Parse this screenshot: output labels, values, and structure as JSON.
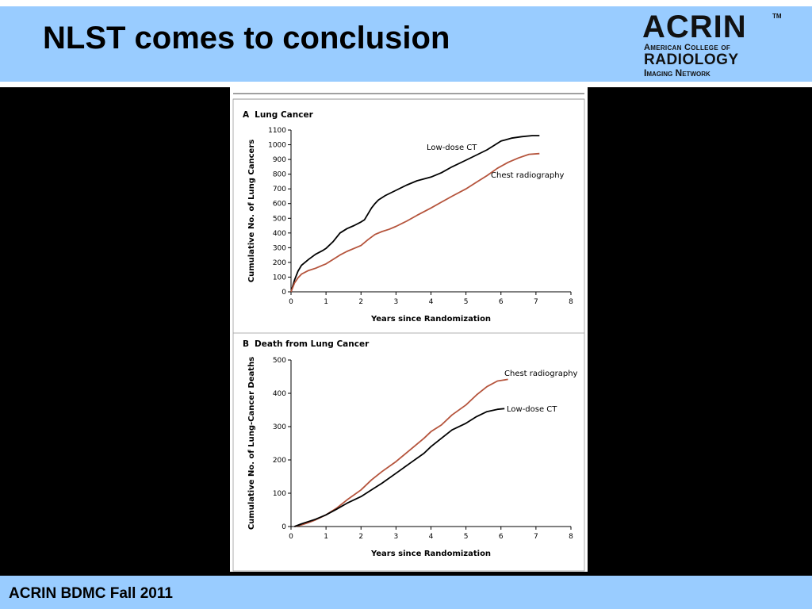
{
  "slide": {
    "title": "NLST comes to conclusion",
    "footer": "ACRIN BDMC Fall 2011"
  },
  "logo": {
    "name": "ACRIN",
    "trademark": "TM",
    "line1": "American College of",
    "line2": "RADIOLOGY",
    "line3": "Imaging Network"
  },
  "colors": {
    "header_band": "#99ccff",
    "low_dose_ct": "#000000",
    "chest_radiography": "#b5543c"
  },
  "chart_data": [
    {
      "type": "line",
      "panel_letter": "A",
      "title": "Lung Cancer",
      "xlabel": "Years since Randomization",
      "ylabel": "Cumulative No. of Lung Cancers",
      "xlim": [
        0,
        8
      ],
      "ylim": [
        0,
        1100
      ],
      "xticks": [
        0,
        1,
        2,
        3,
        4,
        5,
        6,
        7,
        8
      ],
      "yticks": [
        0,
        100,
        200,
        300,
        400,
        500,
        600,
        700,
        800,
        900,
        1000,
        1100
      ],
      "series": [
        {
          "name": "Low-dose CT",
          "color": "#000000",
          "x": [
            0,
            0.1,
            0.2,
            0.3,
            0.5,
            0.7,
            0.9,
            1.0,
            1.2,
            1.4,
            1.6,
            1.8,
            2.0,
            2.1,
            2.2,
            2.3,
            2.4,
            2.5,
            2.7,
            3.0,
            3.3,
            3.6,
            4.0,
            4.3,
            4.6,
            5.0,
            5.3,
            5.6,
            5.8,
            6.0,
            6.3,
            6.6,
            6.9,
            7.1
          ],
          "y": [
            0,
            80,
            140,
            180,
            220,
            255,
            280,
            295,
            340,
            400,
            430,
            450,
            475,
            490,
            530,
            570,
            600,
            625,
            655,
            690,
            725,
            755,
            780,
            810,
            850,
            895,
            930,
            965,
            995,
            1025,
            1045,
            1055,
            1062,
            1062
          ]
        },
        {
          "name": "Chest radiography",
          "color": "#b5543c",
          "x": [
            0,
            0.1,
            0.2,
            0.3,
            0.5,
            0.7,
            0.9,
            1.0,
            1.2,
            1.4,
            1.6,
            1.8,
            2.0,
            2.2,
            2.4,
            2.6,
            2.8,
            3.0,
            3.3,
            3.6,
            4.0,
            4.3,
            4.6,
            5.0,
            5.3,
            5.6,
            5.9,
            6.2,
            6.5,
            6.8,
            7.1
          ],
          "y": [
            0,
            60,
            95,
            120,
            145,
            160,
            180,
            190,
            220,
            250,
            275,
            295,
            315,
            355,
            390,
            410,
            425,
            445,
            480,
            520,
            570,
            610,
            650,
            700,
            745,
            790,
            840,
            880,
            910,
            935,
            940
          ]
        }
      ]
    },
    {
      "type": "line",
      "panel_letter": "B",
      "title": "Death from Lung Cancer",
      "xlabel": "Years since Randomization",
      "ylabel": "Cumulative No. of Lung-Cancer Deaths",
      "xlim": [
        0,
        8
      ],
      "ylim": [
        0,
        500
      ],
      "xticks": [
        0,
        1,
        2,
        3,
        4,
        5,
        6,
        7,
        8
      ],
      "yticks": [
        0,
        100,
        200,
        300,
        400,
        500
      ],
      "series": [
        {
          "name": "Chest radiography",
          "color": "#b5543c",
          "x": [
            0.1,
            0.3,
            0.5,
            0.7,
            1.0,
            1.3,
            1.6,
            2.0,
            2.3,
            2.6,
            3.0,
            3.4,
            3.8,
            4.0,
            4.3,
            4.6,
            5.0,
            5.3,
            5.6,
            5.9,
            6.2
          ],
          "y": [
            0,
            5,
            12,
            20,
            35,
            55,
            80,
            110,
            140,
            165,
            195,
            230,
            265,
            285,
            305,
            335,
            365,
            395,
            420,
            437,
            442
          ]
        },
        {
          "name": "Low-dose CT",
          "color": "#000000",
          "x": [
            0.1,
            0.3,
            0.5,
            0.7,
            1.0,
            1.3,
            1.6,
            2.0,
            2.3,
            2.6,
            3.0,
            3.4,
            3.8,
            4.0,
            4.3,
            4.6,
            5.0,
            5.3,
            5.6,
            5.9,
            6.1
          ],
          "y": [
            0,
            8,
            15,
            22,
            35,
            52,
            70,
            90,
            110,
            130,
            160,
            190,
            220,
            240,
            265,
            290,
            310,
            330,
            345,
            352,
            354
          ]
        }
      ]
    }
  ]
}
